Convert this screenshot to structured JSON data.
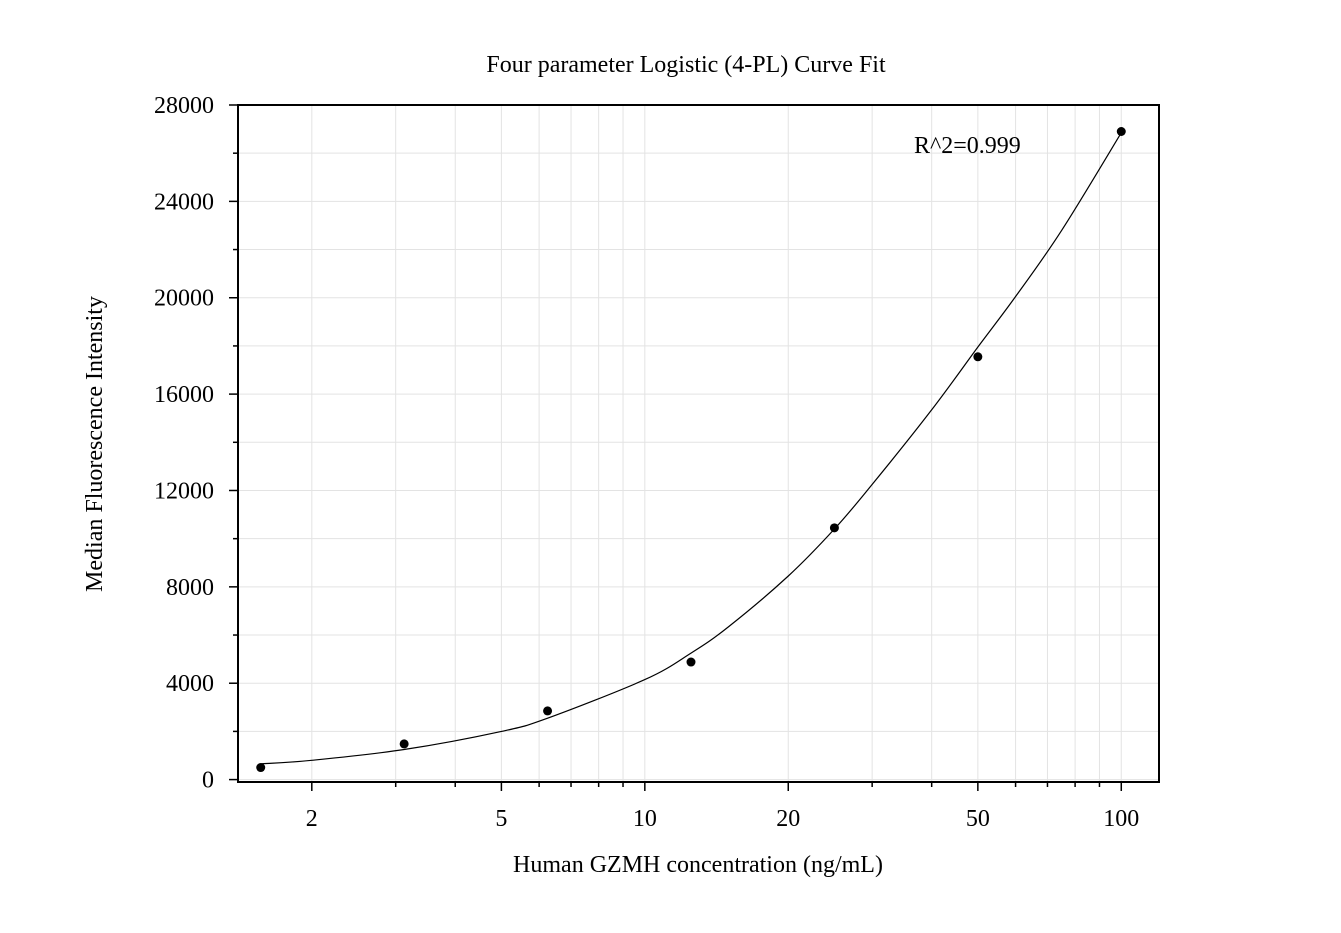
{
  "chart_data": {
    "type": "scatter",
    "title": "Four parameter Logistic (4-PL) Curve Fit",
    "xlabel": "Human GZMH concentration (ng/mL)",
    "ylabel": "Median Fluorescence Intensity",
    "x_scale": "log",
    "xlim": [
      1.4,
      120
    ],
    "ylim": [
      -100,
      28000
    ],
    "x_ticks": [
      2,
      5,
      10,
      20,
      50,
      100
    ],
    "x_tick_labels": [
      "2",
      "5",
      "10",
      "20",
      "50",
      "100"
    ],
    "y_ticks": [
      0,
      4000,
      8000,
      12000,
      16000,
      20000,
      24000,
      28000
    ],
    "y_tick_labels": [
      "0",
      "4000",
      "8000",
      "12000",
      "16000",
      "20000",
      "24000",
      "28000"
    ],
    "grid": true,
    "annotation": "R^2=0.999",
    "series": [
      {
        "x": [
          1.5625,
          3.125,
          6.25,
          12.5,
          25,
          50,
          100
        ],
        "y": [
          500,
          1480,
          2850,
          4880,
          10450,
          17550,
          26900
        ]
      }
    ],
    "fit_curve": {
      "model": "4PL",
      "x": [
        1.5625,
        2,
        3.125,
        5,
        6.25,
        10,
        12.5,
        15,
        20,
        25,
        30,
        40,
        50,
        60,
        75,
        100
      ],
      "y": [
        650,
        800,
        1250,
        2000,
        2550,
        4150,
        5250,
        6350,
        8450,
        10400,
        12250,
        15350,
        17950,
        20050,
        22800,
        26850
      ]
    }
  }
}
